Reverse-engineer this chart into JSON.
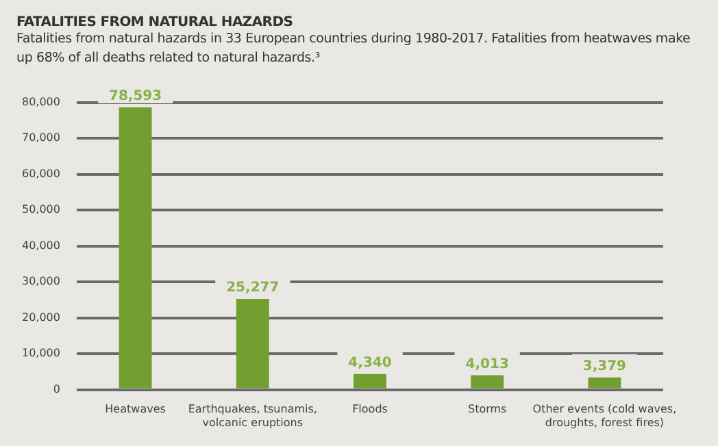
{
  "chart_data": {
    "type": "bar",
    "title": "FATALITIES FROM NATURAL HAZARDS",
    "subtitle": "Fatalities from natural hazards in 33 European countries during 1980-2017. Fatalities from heatwaves make up 68% of all deaths related to natural hazards.³",
    "categories": [
      "Heatwaves",
      "Earthquakes, tsunamis, volcanic eruptions",
      "Floods",
      "Storms",
      "Other events (cold waves, droughts, forest fires)"
    ],
    "values": [
      78593,
      25277,
      4340,
      4013,
      3379
    ],
    "color": "#72a030",
    "value_labels": [
      "78,593",
      "25,277",
      "4,340",
      "4,013",
      "3,379"
    ],
    "ylim": [
      0,
      80000
    ],
    "yticks": [
      0,
      {
        "value": 10000,
        "label": "10,000"
      },
      {
        "value": 20000,
        "label": "20,000"
      },
      {
        "value": 30000,
        "label": "30,000"
      },
      {
        "value": 40000,
        "label": "40,000"
      },
      {
        "value": 50000,
        "label": "50,000"
      },
      {
        "value": 60000,
        "label": "60,000"
      },
      {
        "value": 70000,
        "label": "70,000"
      },
      {
        "value": 80000,
        "label": "80,000"
      }
    ],
    "grid": "y"
  }
}
